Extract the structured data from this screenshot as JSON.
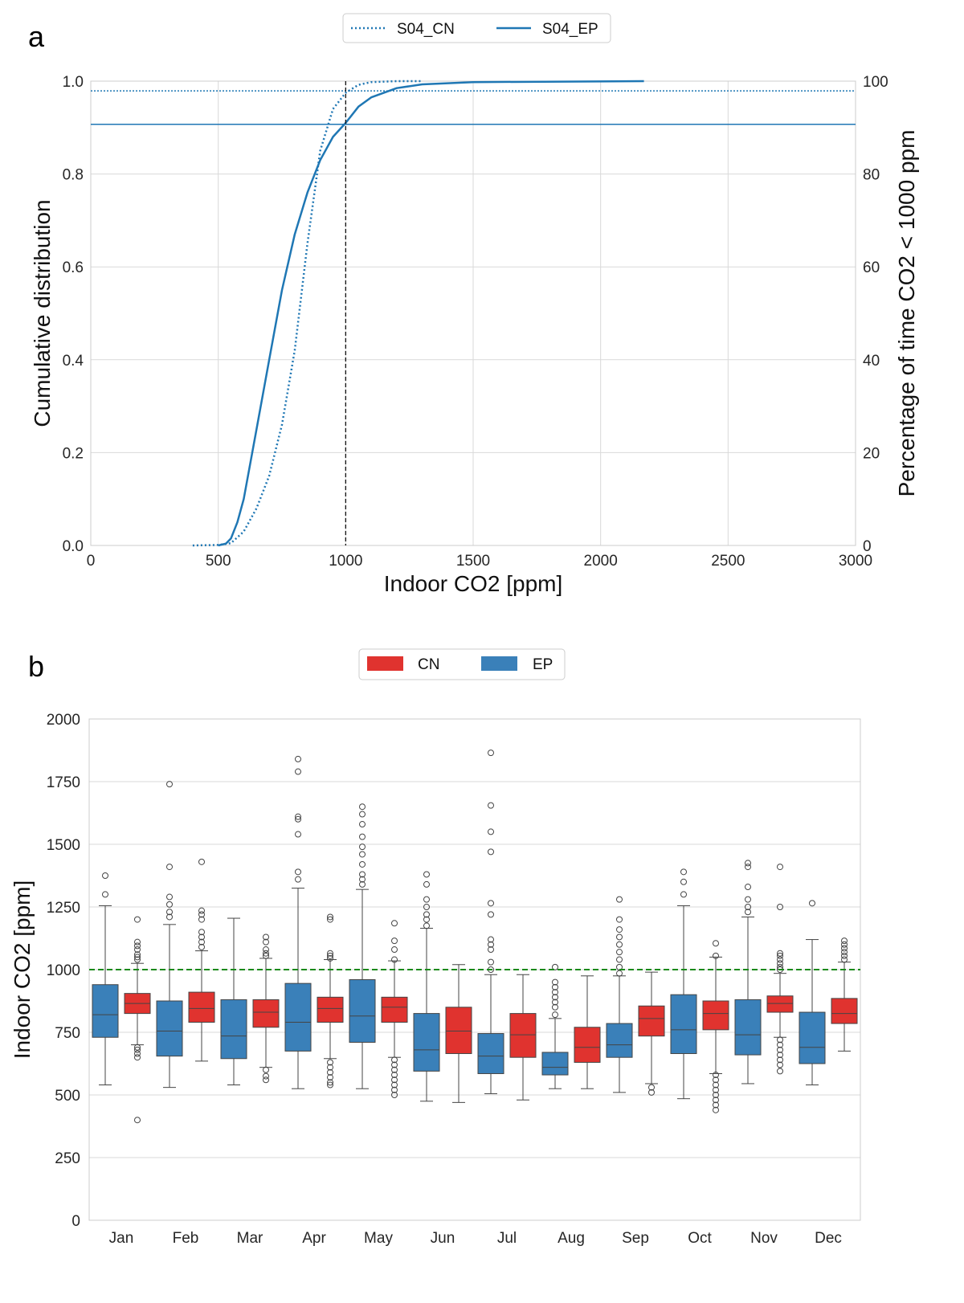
{
  "chart_data": [
    {
      "type": "line",
      "panel_label": "a",
      "xlabel": "Indoor CO2 [ppm]",
      "ylabel": "Cumulative distribution",
      "ylabel_right": "Percentage of time CO2 < 1000 ppm",
      "xlim": [
        0,
        3000
      ],
      "ylim": [
        0,
        1
      ],
      "ylim_right": [
        0,
        100
      ],
      "xticks": [
        "0",
        "500",
        "1000",
        "1500",
        "2000",
        "2500",
        "3000"
      ],
      "yticks": [
        "0.0",
        "0.2",
        "0.4",
        "0.6",
        "0.8",
        "1.0"
      ],
      "yticks_right": [
        "0",
        "20",
        "40",
        "60",
        "80",
        "100"
      ],
      "grid": true,
      "legend_position": "top-center",
      "threshold_x": 1000,
      "series": [
        {
          "name": "S04_CN",
          "style": "dotted",
          "color": "#1f77b4",
          "pct_below_threshold": 97.9,
          "x": [
            400,
            500,
            550,
            600,
            650,
            700,
            750,
            800,
            850,
            900,
            950,
            1000,
            1050,
            1100,
            1200,
            1300
          ],
          "y": [
            0,
            0.001,
            0.005,
            0.03,
            0.08,
            0.15,
            0.26,
            0.42,
            0.65,
            0.85,
            0.94,
            0.975,
            0.992,
            0.998,
            1.0,
            1.0
          ]
        },
        {
          "name": "S04_EP",
          "style": "solid",
          "color": "#1f77b4",
          "pct_below_threshold": 90.7,
          "x": [
            500,
            530,
            550,
            575,
            600,
            650,
            700,
            750,
            800,
            850,
            900,
            950,
            1000,
            1050,
            1100,
            1200,
            1300,
            1500,
            2170
          ],
          "y": [
            0,
            0.004,
            0.015,
            0.05,
            0.1,
            0.25,
            0.4,
            0.55,
            0.67,
            0.76,
            0.83,
            0.88,
            0.91,
            0.945,
            0.965,
            0.985,
            0.993,
            0.998,
            1.0
          ]
        }
      ]
    },
    {
      "type": "box",
      "panel_label": "b",
      "ylabel": "Indoor CO2 [ppm]",
      "ylim": [
        0,
        2000
      ],
      "threshold_y": 1000,
      "yticks": [
        "0",
        "250",
        "500",
        "750",
        "1000",
        "1250",
        "1500",
        "1750",
        "2000"
      ],
      "categories": [
        "Jan",
        "Feb",
        "Mar",
        "Apr",
        "May",
        "Jun",
        "Jul",
        "Aug",
        "Sep",
        "Oct",
        "Nov",
        "Dec"
      ],
      "legend_position": "top-center",
      "series": [
        {
          "name": "CN",
          "color": "#e0332f",
          "boxes": [
            [
              700,
              825,
              865,
              905,
              1025,
              [
                1040,
                1050,
                1060,
                1080,
                1095,
                1110,
                1200,
                690,
                680,
                665,
                650,
                400
              ]
            ],
            [
              635,
              790,
              845,
              910,
              1075,
              [
                1090,
                1110,
                1130,
                1150,
                1200,
                1220,
                1235,
                1430
              ]
            ],
            [
              610,
              770,
              830,
              880,
              1045,
              [
                1055,
                1065,
                1080,
                1110,
                1130,
                600,
                575,
                560
              ]
            ],
            [
              645,
              790,
              845,
              890,
              1040,
              [
                1045,
                1055,
                1065,
                1200,
                1210,
                630,
                610,
                590,
                570,
                550,
                540
              ]
            ],
            [
              650,
              790,
              850,
              890,
              1035,
              [
                1040,
                1080,
                1115,
                1185,
                640,
                620,
                600,
                580,
                560,
                540,
                520,
                500
              ]
            ],
            [
              470,
              665,
              755,
              850,
              1020,
              []
            ],
            [
              480,
              650,
              740,
              825,
              980,
              []
            ],
            [
              525,
              630,
              690,
              770,
              975,
              []
            ],
            [
              545,
              735,
              805,
              855,
              990,
              [
                530,
                510
              ]
            ],
            [
              585,
              760,
              825,
              875,
              1050,
              [
                1055,
                1105,
                580,
                560,
                540,
                520,
                500,
                480,
                460,
                440
              ]
            ],
            [
              730,
              830,
              865,
              895,
              985,
              [
                1000,
                1010,
                1025,
                1040,
                1055,
                1065,
                1250,
                1410,
                720,
                700,
                680,
                660,
                640,
                620,
                595
              ]
            ],
            [
              675,
              785,
              825,
              885,
              1030,
              [
                1040,
                1055,
                1070,
                1085,
                1100,
                1115
              ]
            ]
          ]
        },
        {
          "name": "EP",
          "color": "#3a80b9",
          "boxes": [
            [
              540,
              730,
              820,
              940,
              1255,
              [
                1300,
                1375
              ]
            ],
            [
              530,
              655,
              755,
              875,
              1180,
              [
                1210,
                1230,
                1260,
                1290,
                1410,
                1740
              ]
            ],
            [
              540,
              645,
              735,
              880,
              1205,
              []
            ],
            [
              525,
              675,
              790,
              945,
              1325,
              [
                1360,
                1390,
                1540,
                1600,
                1610,
                1790,
                1840
              ]
            ],
            [
              525,
              710,
              815,
              960,
              1320,
              [
                1340,
                1360,
                1380,
                1420,
                1460,
                1490,
                1530,
                1580,
                1620,
                1650
              ]
            ],
            [
              475,
              595,
              680,
              825,
              1165,
              [
                1175,
                1200,
                1220,
                1250,
                1280,
                1340,
                1380
              ]
            ],
            [
              505,
              585,
              655,
              745,
              980,
              [
                1000,
                1030,
                1080,
                1100,
                1120,
                1220,
                1265,
                1470,
                1550,
                1655,
                1865
              ]
            ],
            [
              525,
              580,
              610,
              670,
              805,
              [
                820,
                850,
                870,
                890,
                910,
                930,
                950,
                1010
              ]
            ],
            [
              510,
              650,
              700,
              785,
              975,
              [
                985,
                1010,
                1040,
                1070,
                1100,
                1130,
                1160,
                1200,
                1280
              ]
            ],
            [
              485,
              665,
              760,
              900,
              1255,
              [
                1300,
                1350,
                1390
              ]
            ],
            [
              545,
              660,
              740,
              880,
              1210,
              [
                1230,
                1250,
                1280,
                1330,
                1410,
                1425
              ]
            ],
            [
              540,
              625,
              690,
              830,
              1120,
              [
                1265
              ]
            ]
          ]
        }
      ]
    }
  ]
}
